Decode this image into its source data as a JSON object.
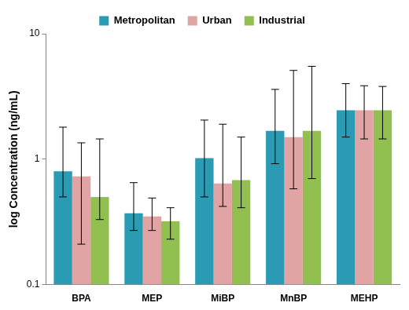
{
  "chart_data": {
    "type": "bar",
    "ylabel": "log Concentration (ng/mL)",
    "categories": [
      "BPA",
      "MEP",
      "MiBP",
      "MnBP",
      "MEHP"
    ],
    "series": [
      {
        "name": "Metropolitan",
        "color": "#2b9bb3",
        "values": [
          0.8,
          0.37,
          1.02,
          1.68,
          2.45
        ],
        "error_low": [
          0.5,
          0.27,
          0.5,
          0.92,
          1.5
        ],
        "error_high": [
          1.8,
          0.65,
          2.05,
          3.6,
          4.0
        ]
      },
      {
        "name": "Urban",
        "color": "#e0a4a4",
        "values": [
          0.73,
          0.35,
          0.64,
          1.5,
          2.45
        ],
        "error_low": [
          0.21,
          0.27,
          0.42,
          0.58,
          1.45
        ],
        "error_high": [
          1.35,
          0.49,
          1.9,
          5.1,
          3.85
        ]
      },
      {
        "name": "Industrial",
        "color": "#92c050",
        "values": [
          0.5,
          0.32,
          0.68,
          1.68,
          2.45
        ],
        "error_low": [
          0.33,
          0.23,
          0.41,
          0.7,
          1.45
        ],
        "error_high": [
          1.45,
          0.41,
          1.5,
          5.5,
          3.8
        ]
      }
    ],
    "ylim": [
      0.1,
      10
    ],
    "yticks": [
      0.1,
      1,
      10
    ],
    "log": "y",
    "grid": false,
    "legend": "top"
  }
}
